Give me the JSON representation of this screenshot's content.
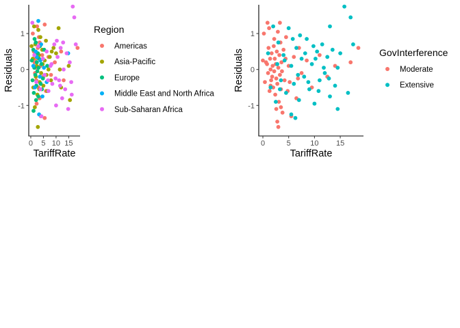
{
  "chart_data": [
    {
      "type": "scatter",
      "xlabel": "TariffRate",
      "ylabel": "Residuals",
      "xlim": [
        -0.8,
        19.5
      ],
      "ylim": [
        -1.85,
        1.8
      ],
      "xticks": [
        0,
        5,
        10,
        15
      ],
      "yticks": [
        -1,
        0,
        1
      ],
      "xtick_labels": [
        "0",
        "5",
        "10",
        "15"
      ],
      "ytick_labels": [
        "-1",
        "0",
        "1"
      ],
      "grid": false,
      "legend": {
        "title": "Region",
        "placement": "right",
        "entries": [
          {
            "label": "Americas",
            "color": "#F8766D"
          },
          {
            "label": "Asia-Pacific",
            "color": "#A3A500"
          },
          {
            "label": "Europe",
            "color": "#00BF7D"
          },
          {
            "label": "Middle East and North Africa",
            "color": "#00B0F6"
          },
          {
            "label": "Sub-Saharan Africa",
            "color": "#E76BF3"
          }
        ]
      },
      "series": [
        {
          "name": "Americas",
          "color": "#F8766D",
          "points": [
            [
              0.8,
              1.0
            ],
            [
              1.2,
              0.5
            ],
            [
              1.5,
              0.2
            ],
            [
              1.7,
              -0.1
            ],
            [
              2.0,
              0.3
            ],
            [
              2.2,
              -0.3
            ],
            [
              2.5,
              1.2
            ],
            [
              2.8,
              0.6
            ],
            [
              3.0,
              -0.5
            ],
            [
              3.2,
              0.9
            ],
            [
              3.5,
              -0.8
            ],
            [
              3.8,
              0.1
            ],
            [
              4.0,
              -1.3
            ],
            [
              4.5,
              0.4
            ],
            [
              5.0,
              -0.2
            ],
            [
              5.5,
              1.25
            ],
            [
              6.0,
              -0.6
            ],
            [
              7.0,
              0.35
            ],
            [
              8.0,
              -0.15
            ],
            [
              9.5,
              0.2
            ],
            [
              12.0,
              0.5
            ],
            [
              13.0,
              -0.3
            ],
            [
              18.5,
              0.6
            ],
            [
              5.5,
              -1.35
            ],
            [
              2.3,
              -0.95
            ],
            [
              3.5,
              0.75
            ],
            [
              1.9,
              0.05
            ]
          ]
        },
        {
          "name": "Asia-Pacific",
          "color": "#A3A500",
          "points": [
            [
              0.3,
              0.65
            ],
            [
              0.8,
              0.3
            ],
            [
              1.0,
              -0.5
            ],
            [
              1.3,
              1.2
            ],
            [
              1.8,
              0.7
            ],
            [
              2.0,
              -0.2
            ],
            [
              2.3,
              0.1
            ],
            [
              2.6,
              -0.7
            ],
            [
              3.0,
              1.1
            ],
            [
              3.2,
              0.4
            ],
            [
              3.5,
              -0.35
            ],
            [
              3.8,
              0.9
            ],
            [
              4.1,
              -0.1
            ],
            [
              4.5,
              0.55
            ],
            [
              5.0,
              -0.45
            ],
            [
              5.5,
              0.25
            ],
            [
              6.0,
              0.8
            ],
            [
              6.5,
              -0.6
            ],
            [
              7.0,
              0.0
            ],
            [
              7.5,
              0.35
            ],
            [
              8.0,
              -0.3
            ],
            [
              9.0,
              0.6
            ],
            [
              10.0,
              0.45
            ],
            [
              11.0,
              1.15
            ],
            [
              11.5,
              0.0
            ],
            [
              12.0,
              -0.5
            ],
            [
              15.0,
              0.1
            ],
            [
              15.5,
              -0.85
            ],
            [
              2.8,
              -1.6
            ],
            [
              1.6,
              -1.05
            ],
            [
              3.4,
              -0.55
            ],
            [
              4.7,
              0.15
            ],
            [
              6.2,
              -0.15
            ],
            [
              8.3,
              0.5
            ]
          ]
        },
        {
          "name": "Europe",
          "color": "#00BF7D",
          "points": [
            [
              0.4,
              0.25
            ],
            [
              0.7,
              -0.3
            ],
            [
              1.0,
              0.55
            ],
            [
              1.2,
              -0.65
            ],
            [
              1.4,
              0.05
            ],
            [
              1.6,
              0.4
            ],
            [
              1.8,
              -0.15
            ],
            [
              2.0,
              0.75
            ],
            [
              2.2,
              -0.45
            ],
            [
              2.4,
              0.2
            ],
            [
              2.6,
              -0.05
            ],
            [
              2.8,
              0.45
            ],
            [
              3.0,
              -0.75
            ],
            [
              3.3,
              0.3
            ],
            [
              3.6,
              0.65
            ],
            [
              3.9,
              -0.4
            ],
            [
              4.2,
              0.15
            ],
            [
              4.8,
              -0.25
            ],
            [
              5.3,
              0.55
            ],
            [
              6.5,
              0.1
            ],
            [
              1.1,
              -1.15
            ],
            [
              1.5,
              0.85
            ],
            [
              2.1,
              -0.85
            ],
            [
              3.1,
              0.05
            ],
            [
              4.4,
              -0.55
            ]
          ]
        },
        {
          "name": "Middle East and North Africa",
          "color": "#00B0F6",
          "points": [
            [
              1.0,
              0.1
            ],
            [
              1.6,
              -0.5
            ],
            [
              2.4,
              0.35
            ],
            [
              3.0,
              1.35
            ],
            [
              3.6,
              -0.2
            ],
            [
              4.1,
              0.7
            ],
            [
              4.6,
              -0.75
            ],
            [
              5.2,
              0.05
            ],
            [
              6.3,
              -0.35
            ],
            [
              3.3,
              -1.25
            ],
            [
              2.0,
              0.5
            ],
            [
              14.8,
              0.45
            ],
            [
              3.8,
              0.25
            ]
          ]
        },
        {
          "name": "Sub-Saharan Africa",
          "color": "#E76BF3",
          "points": [
            [
              0.6,
              1.3
            ],
            [
              1.4,
              0.4
            ],
            [
              2.2,
              -0.35
            ],
            [
              3.0,
              0.65
            ],
            [
              3.8,
              -0.55
            ],
            [
              4.8,
              0.3
            ],
            [
              5.5,
              -0.15
            ],
            [
              6.3,
              0.5
            ],
            [
              7.0,
              -0.6
            ],
            [
              7.8,
              0.1
            ],
            [
              8.5,
              -0.4
            ],
            [
              9.3,
              0.7
            ],
            [
              10.0,
              -1.0
            ],
            [
              10.6,
              0.35
            ],
            [
              11.2,
              -0.3
            ],
            [
              11.8,
              0.6
            ],
            [
              12.4,
              -0.8
            ],
            [
              13.0,
              0.0
            ],
            [
              13.6,
              -0.55
            ],
            [
              14.2,
              0.45
            ],
            [
              14.8,
              -1.1
            ],
            [
              15.4,
              0.2
            ],
            [
              16.0,
              -0.35
            ],
            [
              16.6,
              1.75
            ],
            [
              17.2,
              1.45
            ],
            [
              17.8,
              0.7
            ],
            [
              16.2,
              -0.7
            ],
            [
              11.6,
              -0.45
            ],
            [
              9.8,
              -0.25
            ],
            [
              8.2,
              0.15
            ],
            [
              6.8,
              -0.3
            ],
            [
              12.8,
              0.75
            ],
            [
              4.2,
              -1.3
            ],
            [
              10.3,
              0.8
            ]
          ]
        }
      ]
    },
    {
      "type": "scatter",
      "xlabel": "TariffRate",
      "ylabel": "Residuals",
      "xlim": [
        -0.8,
        19.5
      ],
      "ylim": [
        -1.85,
        1.8
      ],
      "xticks": [
        0,
        5,
        10,
        15
      ],
      "yticks": [
        -1,
        0,
        1
      ],
      "xtick_labels": [
        "0",
        "5",
        "10",
        "15"
      ],
      "ytick_labels": [
        "-1",
        "0",
        "1"
      ],
      "grid": false,
      "legend": {
        "title": "GovInterference",
        "placement": "right",
        "entries": [
          {
            "label": "Moderate",
            "color": "#F8766D"
          },
          {
            "label": "Extensive",
            "color": "#00BFC4"
          }
        ]
      },
      "series": [
        {
          "name": "Moderate",
          "color": "#F8766D",
          "points": [
            [
              0.0,
              0.25
            ],
            [
              0.2,
              1.0
            ],
            [
              0.4,
              -0.35
            ],
            [
              0.6,
              0.2
            ],
            [
              0.9,
              1.3
            ],
            [
              1.0,
              -0.1
            ],
            [
              1.1,
              0.6
            ],
            [
              1.3,
              -0.6
            ],
            [
              1.4,
              0.3
            ],
            [
              1.5,
              0.0
            ],
            [
              1.6,
              -0.3
            ],
            [
              1.7,
              0.45
            ],
            [
              1.8,
              -0.2
            ],
            [
              1.9,
              0.1
            ],
            [
              2.0,
              -0.5
            ],
            [
              2.1,
              0.65
            ],
            [
              2.2,
              -0.05
            ],
            [
              2.3,
              0.3
            ],
            [
              2.4,
              -0.7
            ],
            [
              2.5,
              0.15
            ],
            [
              2.6,
              -0.25
            ],
            [
              2.7,
              0.5
            ],
            [
              2.8,
              -0.4
            ],
            [
              2.9,
              1.05
            ],
            [
              3.0,
              0.05
            ],
            [
              3.1,
              -0.9
            ],
            [
              3.2,
              0.4
            ],
            [
              3.3,
              -0.15
            ],
            [
              3.4,
              0.75
            ],
            [
              3.5,
              -0.55
            ],
            [
              3.6,
              0.2
            ],
            [
              3.8,
              -1.2
            ],
            [
              4.0,
              0.55
            ],
            [
              4.2,
              -0.3
            ],
            [
              4.5,
              0.9
            ],
            [
              4.8,
              -0.6
            ],
            [
              5.0,
              0.1
            ],
            [
              5.5,
              -1.3
            ],
            [
              6.0,
              0.35
            ],
            [
              6.5,
              -0.8
            ],
            [
              7.0,
              0.6
            ],
            [
              7.5,
              -0.1
            ],
            [
              8.5,
              0.25
            ],
            [
              9.5,
              -0.5
            ],
            [
              11.0,
              0.4
            ],
            [
              12.5,
              -0.2
            ],
            [
              14.0,
              0.1
            ],
            [
              17.0,
              0.2
            ],
            [
              18.5,
              0.6
            ],
            [
              3.3,
              1.3
            ],
            [
              3.0,
              -1.6
            ],
            [
              2.6,
              -1.1
            ],
            [
              1.2,
              1.15
            ],
            [
              0.8,
              0.15
            ],
            [
              1.5,
              -0.45
            ],
            [
              2.2,
              0.85
            ],
            [
              3.7,
              -0.05
            ],
            [
              4.4,
              0.3
            ],
            [
              5.2,
              -0.35
            ],
            [
              6.8,
              -0.25
            ],
            [
              2.8,
              -1.45
            ],
            [
              3.5,
              -1.05
            ]
          ]
        },
        {
          "name": "Extensive",
          "color": "#00BFC4",
          "points": [
            [
              1.0,
              0.45
            ],
            [
              1.5,
              -0.5
            ],
            [
              2.0,
              1.2
            ],
            [
              2.5,
              -0.9
            ],
            [
              3.0,
              0.75
            ],
            [
              3.5,
              -0.3
            ],
            [
              4.0,
              0.4
            ],
            [
              4.5,
              -0.65
            ],
            [
              5.0,
              1.15
            ],
            [
              5.5,
              0.1
            ],
            [
              6.0,
              -0.4
            ],
            [
              6.5,
              0.6
            ],
            [
              7.0,
              -0.85
            ],
            [
              7.5,
              0.3
            ],
            [
              8.0,
              -0.2
            ],
            [
              8.5,
              0.85
            ],
            [
              9.0,
              -0.55
            ],
            [
              9.5,
              0.15
            ],
            [
              10.0,
              -0.95
            ],
            [
              10.5,
              0.5
            ],
            [
              11.0,
              -0.3
            ],
            [
              11.5,
              0.7
            ],
            [
              12.0,
              -0.1
            ],
            [
              12.5,
              0.35
            ],
            [
              13.0,
              -0.75
            ],
            [
              13.5,
              0.55
            ],
            [
              14.0,
              -0.45
            ],
            [
              14.5,
              0.05
            ],
            [
              15.0,
              0.45
            ],
            [
              15.8,
              1.75
            ],
            [
              16.5,
              -0.65
            ],
            [
              17.0,
              1.45
            ],
            [
              17.5,
              0.7
            ],
            [
              5.5,
              -1.25
            ],
            [
              6.3,
              -1.35
            ],
            [
              14.5,
              -1.1
            ],
            [
              13.0,
              1.2
            ],
            [
              10.2,
              0.3
            ],
            [
              8.8,
              -0.35
            ],
            [
              7.2,
              0.95
            ],
            [
              9.8,
              0.65
            ],
            [
              11.8,
              0.05
            ],
            [
              6.8,
              -0.15
            ],
            [
              4.2,
              0.25
            ],
            [
              3.3,
              -0.55
            ],
            [
              2.8,
              0.15
            ],
            [
              12.8,
              -0.25
            ],
            [
              8.2,
              0.45
            ],
            [
              10.8,
              -0.6
            ],
            [
              5.8,
              0.85
            ]
          ]
        }
      ]
    }
  ]
}
